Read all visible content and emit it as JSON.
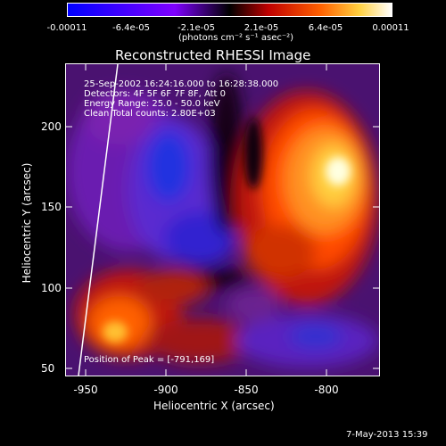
{
  "colorbar": {
    "ticks": [
      "-0.00011",
      "-6.4e-05",
      "-2.1e-05",
      "2.1e-05",
      "6.4e-05",
      "0.00011"
    ],
    "unit_label": "(photons cm⁻² s⁻¹ asec⁻²)"
  },
  "title": "Reconstructed RHESSI Image",
  "info": {
    "line1": "25-Sep-2002 16:24:16.000 to 16:28:38.000",
    "line2": "Detectors: 4F 5F 6F 7F 8F, Att 0",
    "line3": "Energy Range: 25.0 - 50.0 keV",
    "line4": "Clean    Total counts: 2.80E+03",
    "peak": "Position of Peak = [-791,169]"
  },
  "axes": {
    "x_ticks": [
      "-950",
      "-900",
      "-850",
      "-800"
    ],
    "y_ticks": [
      "200",
      "150",
      "100",
      "50"
    ],
    "xlabel": "Heliocentric X (arcsec)",
    "ylabel": "Heliocentric Y (arcsec)"
  },
  "footer": {
    "date": "7-May-2013 15:39"
  }
}
